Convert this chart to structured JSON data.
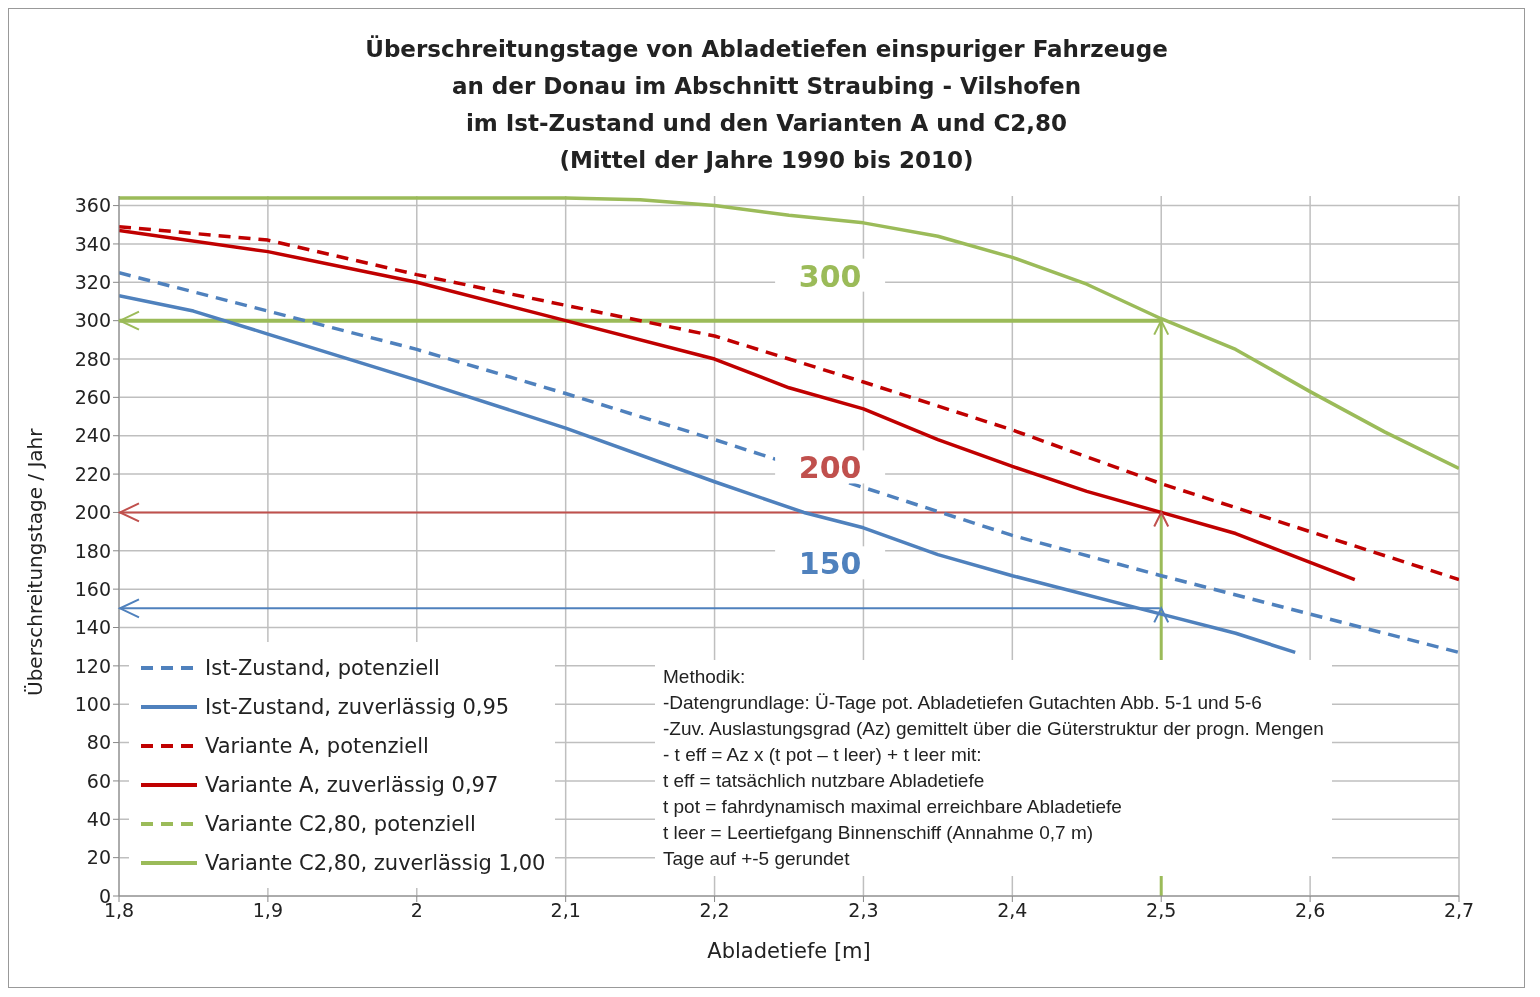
{
  "chart_data": {
    "type": "line",
    "title": "Überschreitungstage von Abladetiefen einspuriger Fahrzeuge\nan der Donau im Abschnitt Straubing - Vilshofen\nim Ist-Zustand und den Varianten A und C2,80\n(Mittel der Jahre 1990 bis 2010)",
    "xlabel": "Abladetiefe [m]",
    "ylabel": "Überschreitungstage / Jahr",
    "xlim": [
      1.8,
      2.7
    ],
    "ylim": [
      0,
      365
    ],
    "xticks": [
      {
        "value": 1.8,
        "label": "1,8"
      },
      {
        "value": 1.9,
        "label": "1,9"
      },
      {
        "value": 2,
        "label": "2"
      },
      {
        "value": 2.1,
        "label": "2,1"
      },
      {
        "value": 2.2,
        "label": "2,2"
      },
      {
        "value": 2.3,
        "label": "2,3"
      },
      {
        "value": 2.4,
        "label": "2,4"
      },
      {
        "value": 2.5,
        "label": "2,5"
      },
      {
        "value": 2.6,
        "label": "2,6"
      },
      {
        "value": 2.7,
        "label": "2,7"
      }
    ],
    "yticks": [
      0,
      20,
      40,
      60,
      80,
      100,
      120,
      140,
      160,
      180,
      200,
      220,
      240,
      260,
      280,
      300,
      320,
      340,
      360
    ],
    "grid": true,
    "legend": "bottom left",
    "marker": "none",
    "series": [
      {
        "name": "Ist-Zustand, potenziell",
        "color": "#4f81bd",
        "line_style": "dashed",
        "x": [
          1.8,
          1.9,
          2.0,
          2.1,
          2.2,
          2.3,
          2.4,
          2.5,
          2.6,
          2.7
        ],
        "values": [
          325,
          305,
          285,
          262,
          238,
          213,
          188,
          167,
          147,
          127
        ]
      },
      {
        "name": "Ist-Zustand, zuverlässig 0,95",
        "color": "#4f81bd",
        "line_style": "solid",
        "x": [
          1.8,
          1.85,
          1.9,
          2.0,
          2.1,
          2.2,
          2.26,
          2.3,
          2.35,
          2.4,
          2.5,
          2.55,
          2.59
        ],
        "values": [
          313,
          305,
          293,
          269,
          244,
          216,
          200,
          192,
          178,
          167,
          147,
          137,
          127
        ]
      },
      {
        "name": "Variante A, potenziell",
        "color": "#c00000",
        "line_style": "dashed",
        "x": [
          1.8,
          1.9,
          2.0,
          2.1,
          2.2,
          2.25,
          2.3,
          2.4,
          2.5,
          2.6,
          2.7
        ],
        "values": [
          349,
          342,
          324,
          308,
          292,
          280,
          268,
          243,
          215,
          190,
          165
        ]
      },
      {
        "name": "Variante A, zuverlässig 0,97",
        "color": "#c00000",
        "line_style": "solid",
        "x": [
          1.8,
          1.9,
          2.0,
          2.1,
          2.2,
          2.25,
          2.3,
          2.35,
          2.4,
          2.45,
          2.5,
          2.55,
          2.6,
          2.63
        ],
        "values": [
          347,
          336,
          320,
          300,
          280,
          265,
          254,
          238,
          224,
          211,
          200,
          189,
          174,
          165
        ]
      },
      {
        "name": "Variante C2,80, potenziell",
        "color": "#9bbb59",
        "line_style": "dashed"
      },
      {
        "name": "Variante C2,80, zuverlässig 1,00",
        "color": "#9bbb59",
        "line_style": "solid",
        "x": [
          1.8,
          2.1,
          2.15,
          2.2,
          2.25,
          2.3,
          2.35,
          2.4,
          2.45,
          2.5,
          2.55,
          2.6,
          2.65,
          2.7
        ],
        "values": [
          364,
          364,
          363,
          360,
          355,
          351,
          344,
          333,
          319,
          301,
          285,
          263,
          242,
          223
        ]
      }
    ],
    "ref_lines": [
      {
        "axis": "y",
        "value": 300,
        "label": "300",
        "color": "#9bbb59"
      },
      {
        "axis": "y",
        "value": 200,
        "label": "200",
        "color": "#c0504d"
      },
      {
        "axis": "y",
        "value": 150,
        "label": "150",
        "color": "#4f81bd"
      },
      {
        "axis": "x",
        "value": 2.5,
        "color": "#9bbb59"
      }
    ],
    "annotations": [
      "Methodik:",
      "-Datengrundlage: Ü-Tage pot. Abladetiefen Gutachten Abb. 5-1 und 5-6",
      "-Zuv. Auslastungsgrad  (Az) gemittelt über die Güterstruktur der progn. Mengen",
      "- t eff = Az x (t pot – t leer) + t leer  mit:",
      "t eff = tatsächlich nutzbare Abladetiefe",
      "t pot = fahrdynamisch maximal erreichbare Abladetiefe",
      "t leer = Leertiefgang Binnenschiff (Annahme 0,7 m)",
      "Tage auf +-5 gerundet"
    ]
  }
}
